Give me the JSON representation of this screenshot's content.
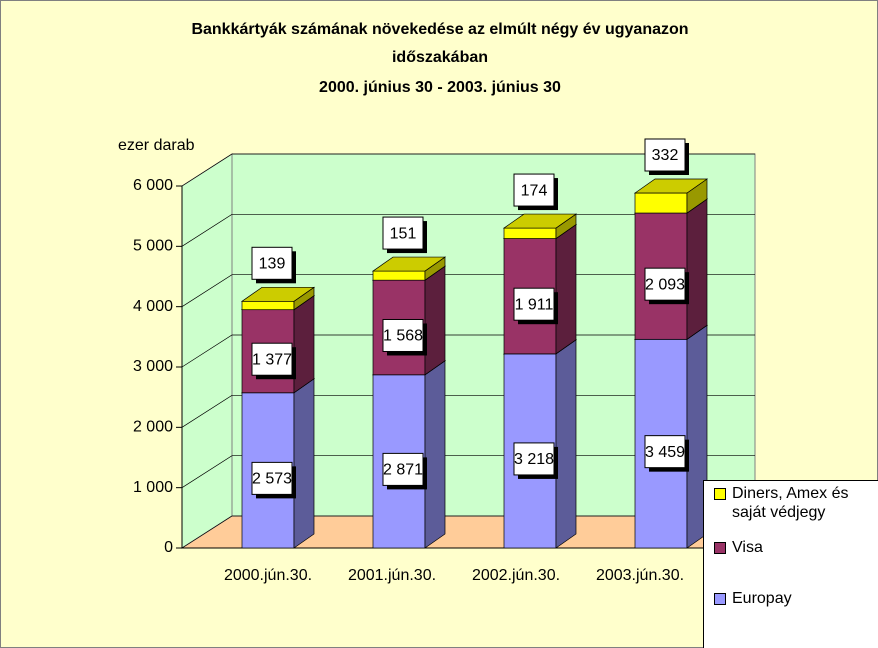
{
  "chart_data": {
    "type": "bar3d_stacked",
    "title": [
      "Bankkártyák számának növekedése az elmúlt négy év ugyanazon",
      "időszakában",
      "2000. június 30 - 2003. június 30"
    ],
    "ylabel": "ezer darab",
    "categories": [
      "2000.jún.30.",
      "2001.jún.30.",
      "2002.jún.30.",
      "2003.jún.30."
    ],
    "series": [
      {
        "name": "Europay",
        "color": "#9999FF",
        "values": [
          2573,
          2871,
          3218,
          3459
        ],
        "value_labels": [
          "2 573",
          "2 871",
          "3 218",
          "3 459"
        ]
      },
      {
        "name": "Visa",
        "color": "#993366",
        "values": [
          1377,
          1568,
          1911,
          2093
        ],
        "value_labels": [
          "1 377",
          "1 568",
          "1 911",
          "2 093"
        ]
      },
      {
        "name": "Diners, Amex és saját védjegy",
        "color": "#FFFF00",
        "values": [
          139,
          151,
          174,
          332
        ]
      }
    ],
    "ylim": [
      0,
      6000
    ],
    "yticks": [
      0,
      {
        "value": 1000,
        "label": "1 000"
      },
      {
        "value": 2000,
        "label": "2 000"
      },
      {
        "value": 3000,
        "label": "3 000"
      },
      {
        "value": 4000,
        "label": "4 000"
      },
      {
        "value": 5000,
        "label": "5 000"
      },
      {
        "value": 6000,
        "label": "6 000"
      }
    ],
    "grid": true,
    "legend": "right"
  }
}
